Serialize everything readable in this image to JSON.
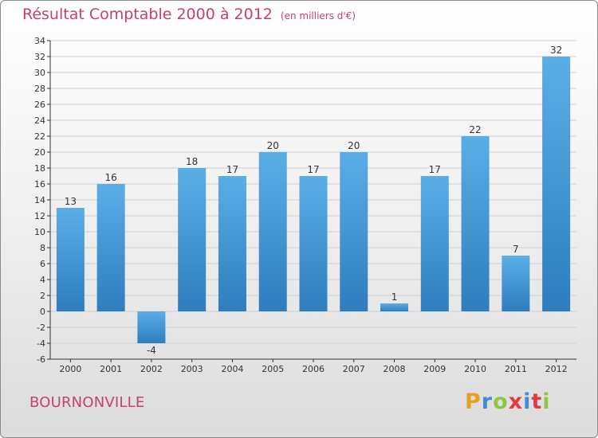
{
  "chart_data": {
    "type": "bar",
    "title": "Résultat Comptable 2000 à 2012",
    "unit_note": "(en milliers d'€)",
    "categories": [
      "2000",
      "2001",
      "2002",
      "2003",
      "2004",
      "2005",
      "2006",
      "2007",
      "2008",
      "2009",
      "2010",
      "2011",
      "2012"
    ],
    "values": [
      13,
      16,
      -4,
      18,
      17,
      20,
      17,
      20,
      1,
      17,
      22,
      7,
      32
    ],
    "ylim": [
      -6,
      34
    ],
    "ytick_step": 2,
    "grid": true,
    "xlabel": "",
    "ylabel": "",
    "colors": {
      "bar_light": "#5aaee6",
      "bar_dark": "#2f7dbd",
      "grid": "#cfcfcf",
      "axis": "#333333"
    }
  },
  "commune": "BOURNONVILLE",
  "logo": {
    "letters": [
      "P",
      "r",
      "o",
      "x",
      "i",
      "t",
      "i"
    ],
    "colors": [
      "#e8a020",
      "#3a8fd6",
      "#8dc63f",
      "#e5393d",
      "#3a8fd6",
      "#e5393d",
      "#8dc63f"
    ]
  }
}
